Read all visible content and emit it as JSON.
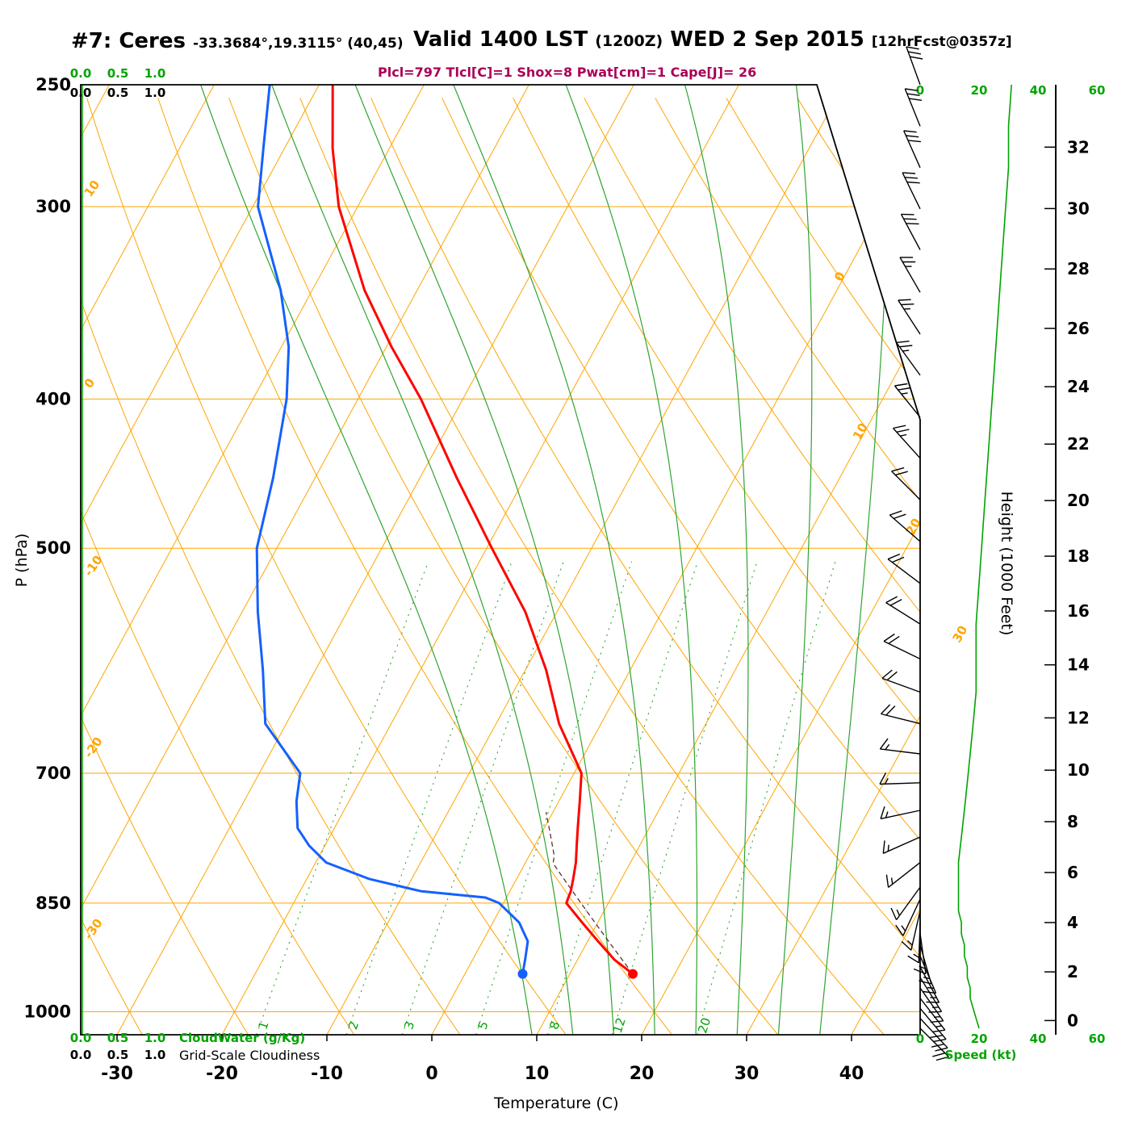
{
  "header": {
    "station": "#7: Ceres",
    "coords": "-33.3684°,19.3115° (40,45)",
    "valid": "Valid 1400 LST",
    "valid_z": "(1200Z)",
    "valid_date": "WED 2 Sep 2015",
    "fcst": "[12hrFcst@0357z]",
    "params": "Plcl=797 Tlcl[C]=1 Shox=8 Pwat[cm]=1 Cape[J]= 26"
  },
  "axes": {
    "pressure_label": "P (hPa)",
    "temperature_label": "Temperature (C)",
    "height_label": "Height (1000 Feet)",
    "speed_label": "Speed (kt)",
    "cloudwater_label": "CloudWater (g/Kg)",
    "cloudiness_label": "Grid-Scale Cloudiness",
    "pressure_ticks": [
      250,
      300,
      400,
      500,
      700,
      850,
      1000
    ],
    "temperature_ticks": [
      -30,
      -20,
      -10,
      0,
      10,
      20,
      30,
      40
    ],
    "height_ticks": [
      0,
      2,
      4,
      6,
      8,
      10,
      12,
      14,
      16,
      18,
      20,
      22,
      24,
      26,
      28,
      30,
      32
    ],
    "speed_ticks": [
      0,
      20,
      40,
      60
    ],
    "cw_scale": [
      "0.0",
      "0.5",
      "1.0"
    ]
  },
  "chart_data": {
    "type": "skew-t-log-p",
    "pressure_range_hPa": [
      250,
      1035
    ],
    "temperature_axis_range_C": [
      -35,
      45
    ],
    "grid": "skew-t background: isobars, skewed isotherms, dry adiabats, moist adiabats, mixing-ratio lines",
    "parameters": {
      "plcl_hPa": 797,
      "tlcl_C": 1,
      "showalter": 8,
      "pwat_cm": 1,
      "cape_J": 26
    },
    "isobars_hPa": [
      300,
      400,
      500,
      700,
      850,
      1000
    ],
    "isotherms_C": {
      "start": -110,
      "end": 50,
      "step": 10
    },
    "dry_adiabats_C": {
      "start": -40,
      "end": 200,
      "step": 10
    },
    "dry_adiabat_edge_labels": [
      10,
      0,
      -10,
      -20,
      -30
    ],
    "isotherm_edge_labels": [
      0,
      10,
      20,
      30
    ],
    "moist_adiabats_C": [
      8,
      12,
      16,
      20,
      24,
      28,
      32,
      36
    ],
    "mixing_ratio_gkg": [
      1,
      2,
      3,
      5,
      8,
      12,
      20
    ],
    "sounding": {
      "pressure_hPa": [
        945,
        925,
        900,
        875,
        850,
        843,
        835,
        820,
        800,
        780,
        760,
        730,
        700,
        650,
        600,
        550,
        500,
        450,
        400,
        370,
        340,
        300,
        275,
        250
      ],
      "temperature_C": [
        16,
        13.5,
        11,
        8.5,
        6,
        5.9,
        5.8,
        5.4,
        4.8,
        4,
        3.2,
        2,
        0.7,
        -4,
        -8,
        -13,
        -19.5,
        -26.5,
        -34,
        -39.5,
        -45,
        -51.8,
        -55.4,
        -58.7
      ],
      "dewpoint_C": [
        5.5,
        5,
        4.3,
        2.5,
        -0.4,
        -2,
        -8.5,
        -14,
        -19,
        -21.5,
        -23.5,
        -25,
        -26.1,
        -32,
        -35,
        -38.5,
        -41.9,
        -44,
        -46.8,
        -49.3,
        -53,
        -59.5,
        -62,
        -64.7
      ]
    },
    "surface": {
      "pressure_hPa": 945,
      "temperature_C": 16,
      "dewpoint_C": 5.5
    },
    "wind_kt": [
      {
        "p": 250,
        "spd": 31,
        "dir": 340
      },
      {
        "p": 266,
        "spd": 30,
        "dir": 338
      },
      {
        "p": 283,
        "spd": 30,
        "dir": 336
      },
      {
        "p": 301,
        "spd": 29,
        "dir": 334
      },
      {
        "p": 320,
        "spd": 28,
        "dir": 332
      },
      {
        "p": 341,
        "spd": 27,
        "dir": 330
      },
      {
        "p": 363,
        "spd": 26,
        "dir": 327
      },
      {
        "p": 386,
        "spd": 25,
        "dir": 324
      },
      {
        "p": 411,
        "spd": 24,
        "dir": 321
      },
      {
        "p": 437,
        "spd": 23,
        "dir": 318
      },
      {
        "p": 465,
        "spd": 22,
        "dir": 315
      },
      {
        "p": 495,
        "spd": 21,
        "dir": 311
      },
      {
        "p": 527,
        "spd": 20,
        "dir": 307
      },
      {
        "p": 560,
        "spd": 19,
        "dir": 302
      },
      {
        "p": 590,
        "spd": 19,
        "dir": 296
      },
      {
        "p": 620,
        "spd": 19,
        "dir": 290
      },
      {
        "p": 650,
        "spd": 18,
        "dir": 284
      },
      {
        "p": 680,
        "spd": 17,
        "dir": 277
      },
      {
        "p": 710,
        "spd": 16,
        "dir": 268
      },
      {
        "p": 740,
        "spd": 15,
        "dir": 258
      },
      {
        "p": 770,
        "spd": 14,
        "dir": 246
      },
      {
        "p": 800,
        "spd": 13,
        "dir": 232
      },
      {
        "p": 830,
        "spd": 13,
        "dir": 216
      },
      {
        "p": 845,
        "spd": 13,
        "dir": 205
      },
      {
        "p": 860,
        "spd": 13,
        "dir": 193
      },
      {
        "p": 875,
        "spd": 14,
        "dir": 182
      },
      {
        "p": 890,
        "spd": 14,
        "dir": 172
      },
      {
        "p": 905,
        "spd": 15,
        "dir": 164
      },
      {
        "p": 920,
        "spd": 15,
        "dir": 157
      },
      {
        "p": 935,
        "spd": 16,
        "dir": 152
      },
      {
        "p": 950,
        "spd": 16,
        "dir": 148
      },
      {
        "p": 965,
        "spd": 17,
        "dir": 145
      },
      {
        "p": 980,
        "spd": 17,
        "dir": 142
      },
      {
        "p": 995,
        "spd": 18,
        "dir": 140
      },
      {
        "p": 1010,
        "spd": 19,
        "dir": 137
      },
      {
        "p": 1025,
        "spd": 20,
        "dir": 135
      }
    ],
    "colors": {
      "grid": "#FFA500",
      "moist": "#2FA42F",
      "green": "#00A400",
      "temperature": "#FF0000",
      "dewpoint": "#1560FF",
      "params": "#AA0055",
      "parcel": "#5A3030"
    }
  }
}
